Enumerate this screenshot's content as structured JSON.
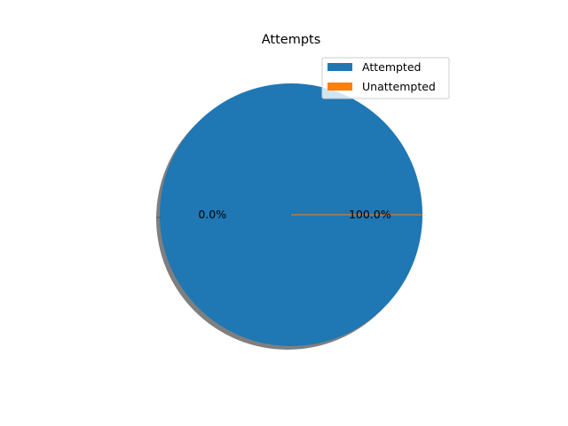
{
  "chart_data": {
    "type": "pie",
    "title": "Attempts",
    "labels": [
      "Attempted",
      "Unattempted"
    ],
    "values": [
      100.0,
      0.0
    ],
    "percent_labels": [
      "100.0%",
      "0.0%"
    ],
    "colors": [
      "#1f77b4",
      "#ff7f0e"
    ],
    "shadow": true,
    "legend_position": "top-right"
  }
}
